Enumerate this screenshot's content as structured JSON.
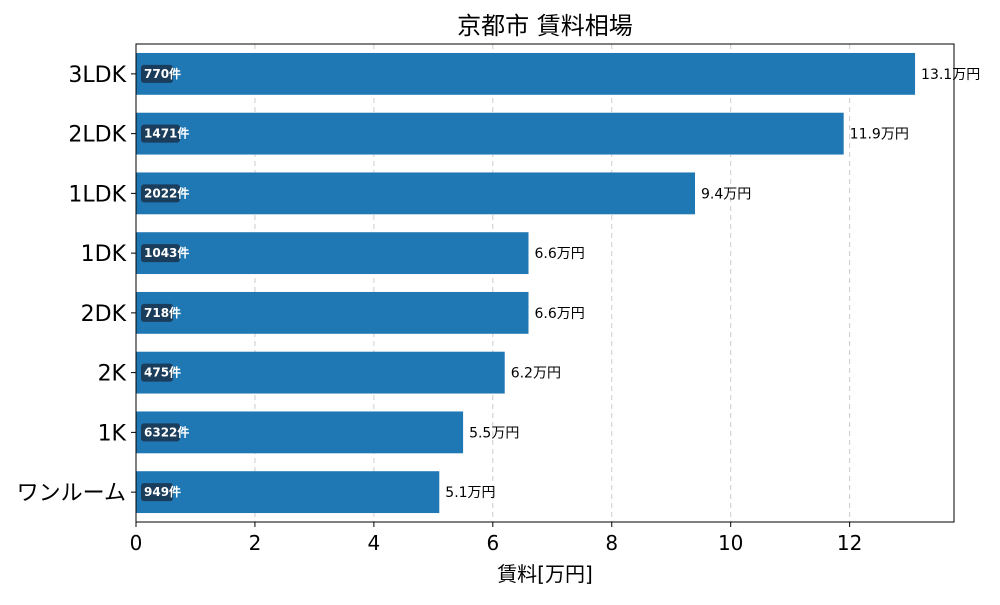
{
  "chart_data": {
    "type": "bar",
    "orientation": "horizontal",
    "title": "京都市 賃料相場",
    "xlabel": "賃料[万円]",
    "ylabel": "",
    "xlim": [
      0,
      13.755
    ],
    "x_ticks": [
      0,
      2,
      4,
      6,
      8,
      10,
      12
    ],
    "grid": "x-dashed",
    "bar_color": "#1f77b4",
    "count_badge_color": "#1a3d5c",
    "categories": [
      "3LDK",
      "2LDK",
      "1LDK",
      "1DK",
      "2DK",
      "2K",
      "1K",
      "ワンルーム"
    ],
    "values": [
      13.1,
      11.9,
      9.4,
      6.6,
      6.6,
      6.2,
      5.5,
      5.1
    ],
    "value_labels": [
      "13.1万円",
      "11.9万円",
      "9.4万円",
      "6.6万円",
      "6.6万円",
      "6.2万円",
      "5.5万円",
      "5.1万円"
    ],
    "count_labels": [
      "770件",
      "1471件",
      "2022件",
      "1043件",
      "718件",
      "475件",
      "6322件",
      "949件"
    ]
  }
}
